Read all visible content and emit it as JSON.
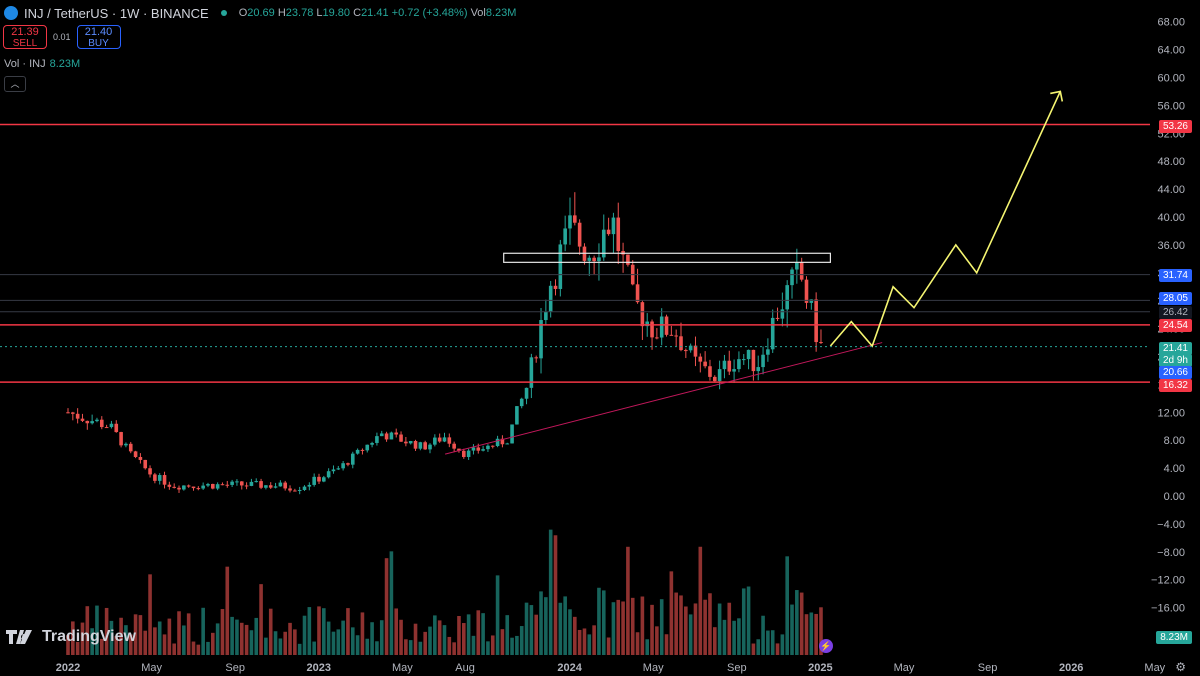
{
  "header": {
    "symbol": "INJ / TetherUS · 1W · BINANCE",
    "o_label": "O",
    "o_value": "20.69",
    "h_label": "H",
    "h_value": "23.78",
    "l_label": "L",
    "l_value": "19.80",
    "c_label": "C",
    "c_value": "21.41",
    "change": "+0.72 (+3.48%)",
    "vol_label": "Vol",
    "vol_value": "8.23M"
  },
  "trade": {
    "sell_price": "21.39",
    "sell_label": "SELL",
    "spread": "0.01",
    "buy_price": "21.40",
    "buy_label": "BUY"
  },
  "volume_indicator": {
    "label": "Vol · INJ",
    "value": "8.23M"
  },
  "collapse_icon": "chevron-up-icon",
  "branding": {
    "name": "TradingView"
  },
  "price_axis": [
    "68.00",
    "64.00",
    "60.00",
    "56.00",
    "52.00",
    "48.00",
    "44.00",
    "40.00",
    "36.00",
    "32.00",
    "28.00",
    "24.00",
    "20.00",
    "16.00",
    "12.00",
    "8.00",
    "4.00",
    "0.00",
    "−4.00",
    "−8.00",
    "−12.00",
    "−16.00"
  ],
  "time_axis": [
    "2022",
    "May",
    "Sep",
    "2023",
    "May",
    "Aug",
    "2024",
    "May",
    "Sep",
    "2025",
    "May",
    "Sep",
    "2026",
    "May"
  ],
  "price_tags": {
    "top_resistance": "53.26",
    "resistance_a": "31.74",
    "resistance_b": "28.05",
    "resistance_c": "26.42",
    "mid_line": "24.54",
    "current": "21.41",
    "countdown": "2d 9h",
    "lower_blue": "20.66",
    "support": "16.32",
    "volume": "8.23M"
  },
  "colors": {
    "up": "#26a69a",
    "down": "#ef5350",
    "hline": "#f23645",
    "projection": "#f5f571",
    "blue": "#2962ff"
  },
  "chart_data": {
    "type": "candlestick",
    "symbol": "INJ / TetherUS",
    "interval": "1W",
    "exchange": "BINANCE",
    "ylim": [
      -18,
      70
    ],
    "close_series_approx": [
      {
        "x": "2022-01",
        "y": 12
      },
      {
        "x": "2022-03",
        "y": 10
      },
      {
        "x": "2022-04",
        "y": 6
      },
      {
        "x": "2022-05",
        "y": 3
      },
      {
        "x": "2022-06",
        "y": 1.5
      },
      {
        "x": "2022-09",
        "y": 1.6
      },
      {
        "x": "2022-11",
        "y": 1.5
      },
      {
        "x": "2022-12",
        "y": 1.2
      },
      {
        "x": "2023-01",
        "y": 2.5
      },
      {
        "x": "2023-02",
        "y": 4
      },
      {
        "x": "2023-04",
        "y": 9
      },
      {
        "x": "2023-06",
        "y": 7
      },
      {
        "x": "2023-07",
        "y": 8.5
      },
      {
        "x": "2023-08",
        "y": 6
      },
      {
        "x": "2023-10",
        "y": 8
      },
      {
        "x": "2023-11",
        "y": 16
      },
      {
        "x": "2023-12",
        "y": 30
      },
      {
        "x": "2024-01",
        "y": 38
      },
      {
        "x": "2024-02",
        "y": 35
      },
      {
        "x": "2024-03",
        "y": 40
      },
      {
        "x": "2024-04",
        "y": 28
      },
      {
        "x": "2024-05",
        "y": 24
      },
      {
        "x": "2024-06",
        "y": 24
      },
      {
        "x": "2024-07",
        "y": 19
      },
      {
        "x": "2024-08",
        "y": 17
      },
      {
        "x": "2024-09",
        "y": 20
      },
      {
        "x": "2024-10",
        "y": 19
      },
      {
        "x": "2024-11",
        "y": 27
      },
      {
        "x": "2024-12",
        "y": 32
      },
      {
        "x": "2025-01",
        "y": 21.41
      }
    ],
    "horizontal_lines": [
      53.26,
      24.54,
      16.32
    ],
    "resistance_box": {
      "from": "2023-12",
      "to": "2025-01",
      "low": 33.5,
      "high": 34.8
    },
    "ascending_trendline": [
      {
        "x": "2023-08",
        "y": 6
      },
      {
        "x": "2025-03",
        "y": 22
      }
    ],
    "projection_path": [
      {
        "x": "2025-01",
        "y": 21.5
      },
      {
        "x": "2025-02",
        "y": 25
      },
      {
        "x": "2025-03",
        "y": 21.5
      },
      {
        "x": "2025-04",
        "y": 30
      },
      {
        "x": "2025-05",
        "y": 27
      },
      {
        "x": "2025-07",
        "y": 36
      },
      {
        "x": "2025-08",
        "y": 32
      },
      {
        "x": "2025-12",
        "y": 58
      }
    ]
  }
}
